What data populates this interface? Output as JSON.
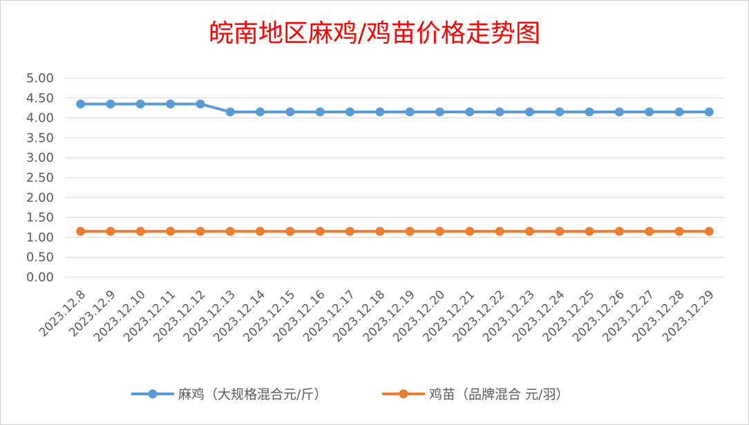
{
  "chart_data": {
    "type": "line",
    "title": "皖南地区麻鸡/鸡苗价格走势图",
    "xlabel": "",
    "ylabel": "",
    "categories": [
      "2023.12.8",
      "2023.12.9",
      "2023.12.10",
      "2023.12.11",
      "2023.12.12",
      "2023.12.13",
      "2023.12.14",
      "2023.12.15",
      "2023.12.16",
      "2023.12.17",
      "2023.12.18",
      "2023.12.19",
      "2023.12.20",
      "2023.12.21",
      "2023.12.22",
      "2023.12.23",
      "2023.12.24",
      "2023.12.25",
      "2023.12.26",
      "2023.12.27",
      "2023.12.28",
      "2023.12.29"
    ],
    "yticks": [
      "0.00",
      "0.50",
      "1.00",
      "1.50",
      "2.00",
      "2.50",
      "3.00",
      "3.50",
      "4.00",
      "4.50",
      "5.00"
    ],
    "ylim": [
      0,
      5
    ],
    "grid": true,
    "legend_position": "bottom",
    "series": [
      {
        "name": "麻鸡（大规格混合元/斤）",
        "color": "#5b9bd5",
        "values": [
          4.35,
          4.35,
          4.35,
          4.35,
          4.35,
          4.15,
          4.15,
          4.15,
          4.15,
          4.15,
          4.15,
          4.15,
          4.15,
          4.15,
          4.15,
          4.15,
          4.15,
          4.15,
          4.15,
          4.15,
          4.15,
          4.15
        ]
      },
      {
        "name": "鸡苗（品牌混合 元/羽）",
        "color": "#ed7d31",
        "values": [
          1.15,
          1.15,
          1.15,
          1.15,
          1.15,
          1.15,
          1.15,
          1.15,
          1.15,
          1.15,
          1.15,
          1.15,
          1.15,
          1.15,
          1.15,
          1.15,
          1.15,
          1.15,
          1.15,
          1.15,
          1.15,
          1.15
        ]
      }
    ]
  }
}
